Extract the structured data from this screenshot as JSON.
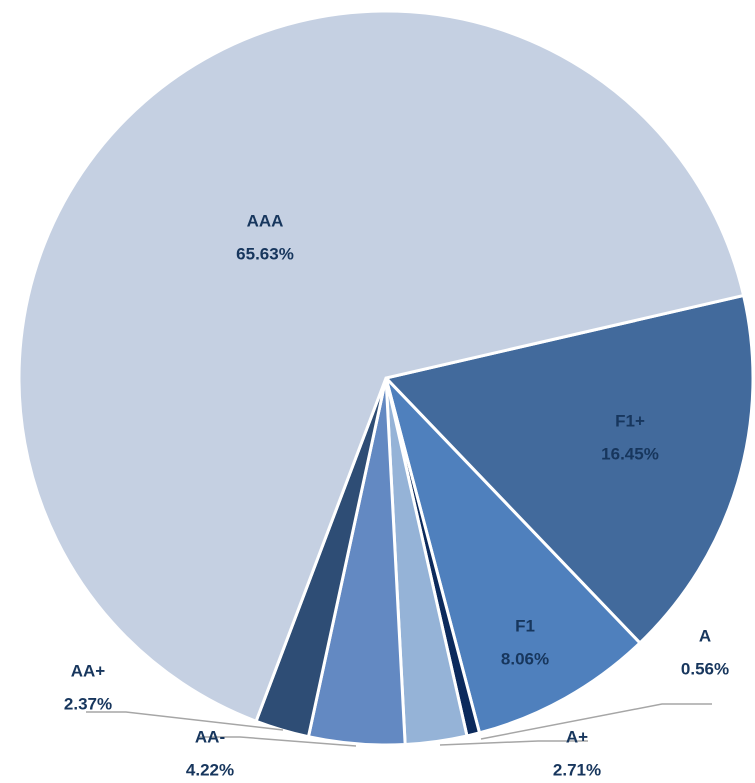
{
  "chart_data": {
    "type": "pie",
    "categories": [
      "F1+",
      "F1",
      "A",
      "A+",
      "AA-",
      "AA+",
      "AAA"
    ],
    "values": [
      16.45,
      8.06,
      0.56,
      2.71,
      4.22,
      2.37,
      65.63
    ],
    "value_labels": [
      "16.45%",
      "8.06%",
      "0.56%",
      "2.71%",
      "4.22%",
      "2.37%",
      "65.63%"
    ],
    "colors": [
      "#426a9c",
      "#4f80bd",
      "#0c2a5c",
      "#95b3d7",
      "#6389c2",
      "#2e4d75",
      "#c5d0e2"
    ]
  }
}
